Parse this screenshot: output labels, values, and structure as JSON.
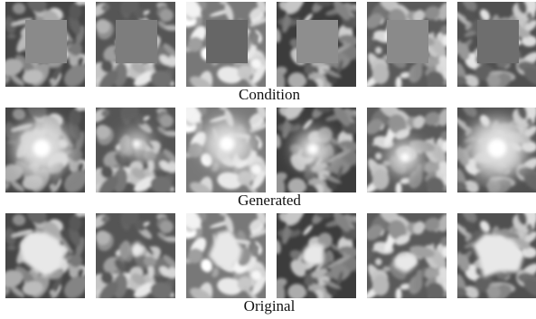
{
  "rows": [
    {
      "caption": "Condition"
    },
    {
      "caption": "Generated"
    },
    {
      "caption": "Original"
    }
  ]
}
